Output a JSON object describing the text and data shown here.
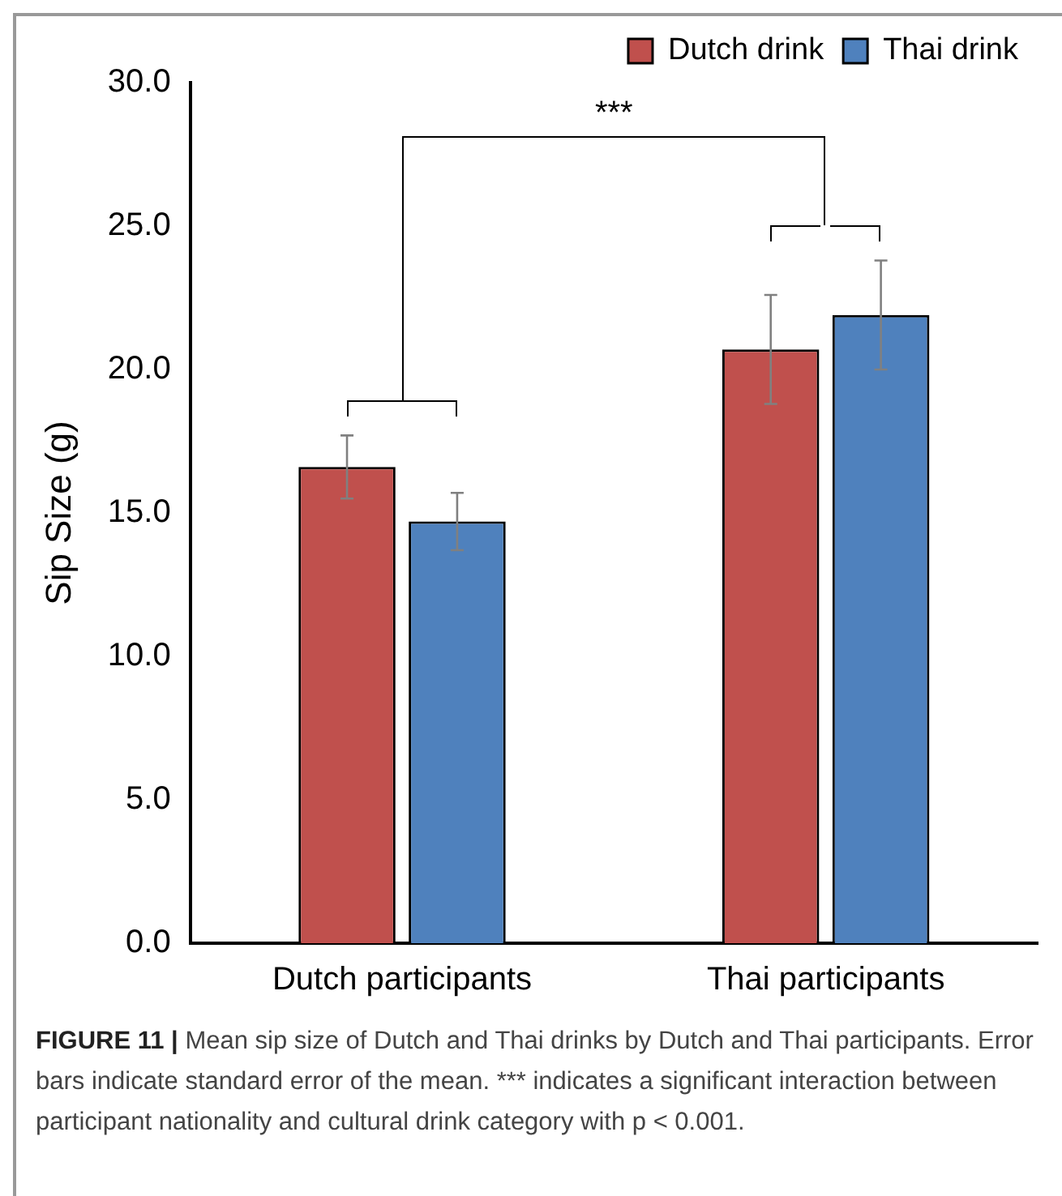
{
  "chart_data": {
    "type": "bar",
    "ylabel": "Sip Size (g)",
    "categories": [
      "Dutch participants",
      "Thai participants"
    ],
    "series": [
      {
        "name": "Dutch drink",
        "color": "#c0504d",
        "values": [
          16.6,
          20.7
        ],
        "errors": [
          1.1,
          1.9
        ]
      },
      {
        "name": "Thai drink",
        "color": "#4f81bd",
        "values": [
          14.7,
          21.9
        ],
        "errors": [
          1.0,
          1.9
        ]
      }
    ],
    "ylim": [
      0,
      30
    ],
    "yticks": [
      {
        "value": 0,
        "label": "0.0"
      },
      {
        "value": 5,
        "label": "5.0"
      },
      {
        "value": 10,
        "label": "10.0"
      },
      {
        "value": 15,
        "label": "15.0"
      },
      {
        "value": 20,
        "label": "20.0"
      },
      {
        "value": 25,
        "label": "25.0"
      },
      {
        "value": 30,
        "label": "30.0"
      }
    ],
    "grid": false,
    "legend": "top right",
    "annotations": [
      "***",
      "FIGURE 11 | Mean sip size of Dutch and Thai drinks by Dutch and Thai participants. Error bars indicate standard error of the mean. *** indicates a significant interaction between participant nationality and cultural drink category with p < 0.001."
    ]
  }
}
